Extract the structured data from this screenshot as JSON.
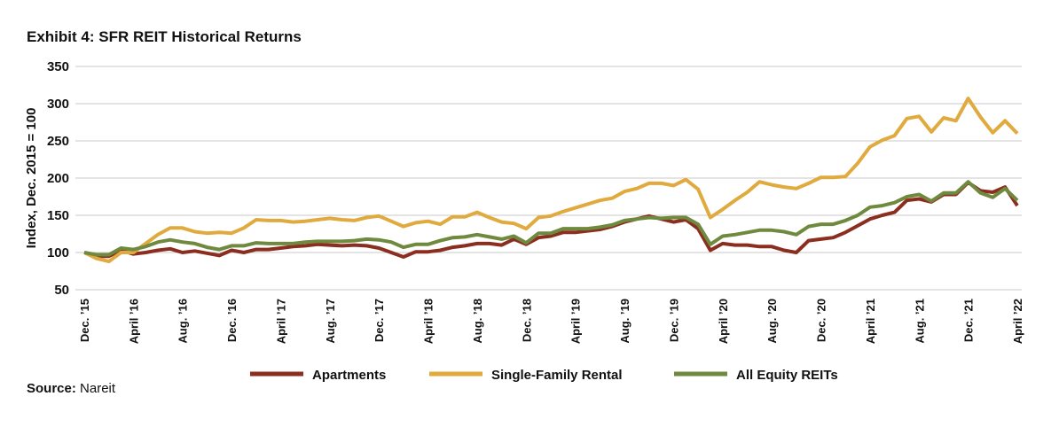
{
  "chart_data": {
    "type": "line",
    "title": "Exhibit 4: SFR REIT Historical Returns",
    "y_label": "Index, Dec. 2015 = 100",
    "source": {
      "label": "Source:",
      "text": "Nareit"
    },
    "categories": [
      "Dec. ’15",
      null,
      null,
      null,
      "April ’16",
      null,
      null,
      null,
      "Aug. ’16",
      null,
      null,
      null,
      "Dec. ’16",
      null,
      null,
      null,
      "April ’17",
      null,
      null,
      null,
      "Aug. ’17",
      null,
      null,
      null,
      "Dec. ’17",
      null,
      null,
      null,
      "April ’18",
      null,
      null,
      null,
      "Aug. ’18",
      null,
      null,
      null,
      "Dec. ’18",
      null,
      null,
      null,
      "April ’19",
      null,
      null,
      null,
      "Aug. ’19",
      null,
      null,
      null,
      "Dec. ’19",
      null,
      null,
      null,
      "April ’20",
      null,
      null,
      null,
      "Aug. ’20",
      null,
      null,
      null,
      "Dec. ’20",
      null,
      null,
      null,
      "April ’21",
      null,
      null,
      null,
      "Aug. ’21",
      null,
      null,
      null,
      "Dec. ’21",
      null,
      null,
      null,
      "April ’22"
    ],
    "series": [
      {
        "name": "Apartments",
        "color": "#8b2e1f",
        "values": [
          100,
          95,
          95,
          103,
          98,
          100,
          103,
          105,
          100,
          102,
          99,
          96,
          103,
          100,
          104,
          104,
          106,
          108,
          109,
          111,
          110,
          109,
          110,
          109,
          106,
          100,
          94,
          101,
          101,
          103,
          107,
          109,
          112,
          112,
          110,
          118,
          111,
          120,
          122,
          127,
          127,
          129,
          131,
          135,
          141,
          145,
          149,
          145,
          141,
          144,
          132,
          103,
          112,
          110,
          110,
          108,
          108,
          103,
          100,
          116,
          118,
          120,
          127,
          136,
          145,
          150,
          154,
          170,
          172,
          168,
          178,
          178,
          194,
          183,
          181,
          188,
          163
        ]
      },
      {
        "name": "Single-Family Rental",
        "color": "#e0aa3e",
        "values": [
          100,
          92,
          88,
          100,
          100,
          112,
          124,
          133,
          133,
          128,
          126,
          127,
          126,
          133,
          144,
          143,
          143,
          141,
          142,
          144,
          146,
          144,
          143,
          147,
          149,
          142,
          135,
          140,
          142,
          138,
          148,
          148,
          154,
          147,
          141,
          139,
          132,
          147,
          149,
          155,
          160,
          165,
          170,
          173,
          182,
          186,
          193,
          193,
          190,
          198,
          185,
          147,
          158,
          170,
          181,
          195,
          191,
          188,
          186,
          193,
          201,
          201,
          202,
          220,
          242,
          251,
          257,
          280,
          283,
          262,
          281,
          277,
          307,
          282,
          261,
          277,
          260
        ]
      },
      {
        "name": "All Equity REITs",
        "color": "#6f8a3e",
        "values": [
          100,
          97,
          97,
          106,
          104,
          108,
          114,
          117,
          114,
          112,
          107,
          104,
          109,
          109,
          113,
          112,
          112,
          112,
          114,
          115,
          115,
          115,
          116,
          118,
          117,
          114,
          107,
          111,
          111,
          116,
          120,
          121,
          124,
          121,
          118,
          122,
          113,
          126,
          126,
          132,
          132,
          132,
          134,
          137,
          143,
          145,
          147,
          146,
          147,
          147,
          138,
          111,
          122,
          124,
          127,
          130,
          130,
          128,
          124,
          135,
          138,
          138,
          143,
          150,
          161,
          163,
          167,
          175,
          178,
          169,
          180,
          180,
          195,
          180,
          174,
          186,
          170
        ]
      }
    ],
    "ylim": [
      50,
      350
    ],
    "yticks": [
      50,
      100,
      150,
      200,
      250,
      300,
      350
    ],
    "grid": true
  }
}
